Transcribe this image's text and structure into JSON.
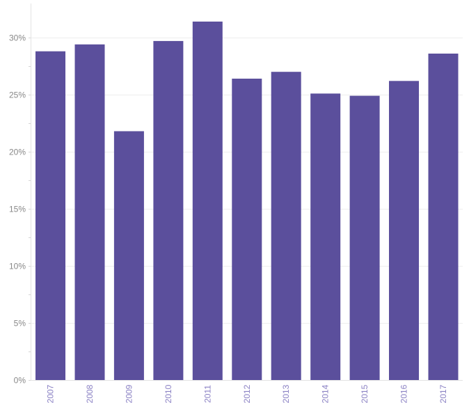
{
  "chart_data": {
    "type": "bar",
    "title": "",
    "xlabel": "",
    "ylabel": "",
    "categories": [
      "2007",
      "2008",
      "2009",
      "2010",
      "2011",
      "2012",
      "2013",
      "2014",
      "2015",
      "2016",
      "2017"
    ],
    "values": [
      28.8,
      29.4,
      21.8,
      29.7,
      31.4,
      26.4,
      27.0,
      25.1,
      24.9,
      26.2,
      28.6
    ],
    "value_unit": "%",
    "ylim": [
      0,
      32
    ],
    "yticks": [
      0,
      5,
      10,
      15,
      20,
      25,
      30
    ],
    "ytick_labels": [
      "0%",
      "5%",
      "10%",
      "15%",
      "20%",
      "25%",
      "30%"
    ],
    "grid": true,
    "legend": "none",
    "bar_color": "#5b4f9c",
    "xtick_color": "#8b82c4",
    "ytick_color": "#888888",
    "grid_color": "#eeeeee"
  }
}
